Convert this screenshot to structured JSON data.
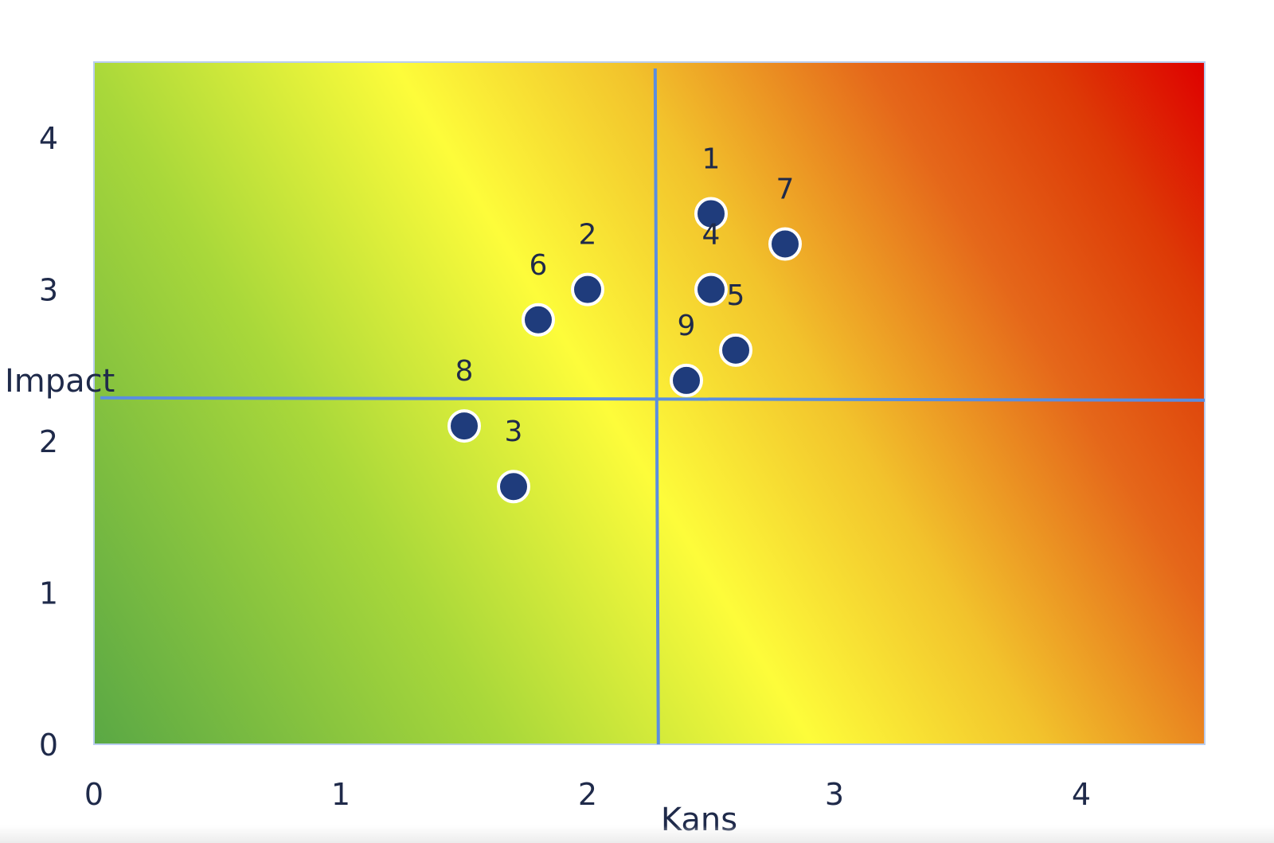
{
  "chart_data": {
    "type": "scatter",
    "title": "",
    "xlabel": "Kans",
    "ylabel": "Impact",
    "xlim": [
      0,
      4.5
    ],
    "ylim": [
      0,
      4.5
    ],
    "x_ticks": [
      "0",
      "1",
      "2",
      "3",
      "4"
    ],
    "y_ticks": [
      "0",
      "1",
      "2",
      "3",
      "4"
    ],
    "grid": false,
    "legend": "none",
    "background": "diagonal gradient green (bottom-left) to yellow to red (top-right)",
    "quadrant_lines": {
      "x": 2.28,
      "y": 2.28
    },
    "points": [
      {
        "label": "1",
        "x": 2.5,
        "y": 3.5
      },
      {
        "label": "2",
        "x": 2.0,
        "y": 3.0
      },
      {
        "label": "3",
        "x": 1.7,
        "y": 1.7
      },
      {
        "label": "4",
        "x": 2.5,
        "y": 3.0
      },
      {
        "label": "5",
        "x": 2.6,
        "y": 2.6
      },
      {
        "label": "6",
        "x": 1.8,
        "y": 2.8
      },
      {
        "label": "7",
        "x": 2.8,
        "y": 3.3
      },
      {
        "label": "8",
        "x": 1.5,
        "y": 2.1
      },
      {
        "label": "9",
        "x": 2.4,
        "y": 2.4
      }
    ]
  },
  "colors": {
    "gradient_green": "#5aa845",
    "gradient_yellow": "#fdfc3a",
    "gradient_red": "#de0000",
    "marker_fill": "#1f3c7c",
    "marker_stroke": "#ffffff",
    "quadrant_line": "#5a8ee0",
    "text": "#1f2a4a"
  }
}
